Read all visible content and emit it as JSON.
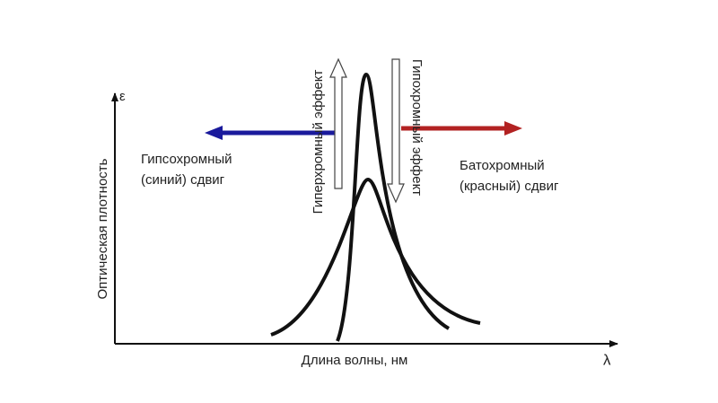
{
  "axes": {
    "y_symbol": "ε",
    "y_label": "Оптическая плотность",
    "x_label": "Длина волны, нм",
    "x_symbol": "λ"
  },
  "annotations": {
    "hypsochromic": [
      "Гипсохромный",
      "(синий) сдвиг"
    ],
    "bathochromic": [
      "Батохромный",
      "(красный) сдвиг"
    ],
    "hyperchromic": "Гиперхромный эффект",
    "hypochromic": "Гипохромный эффект"
  }
}
